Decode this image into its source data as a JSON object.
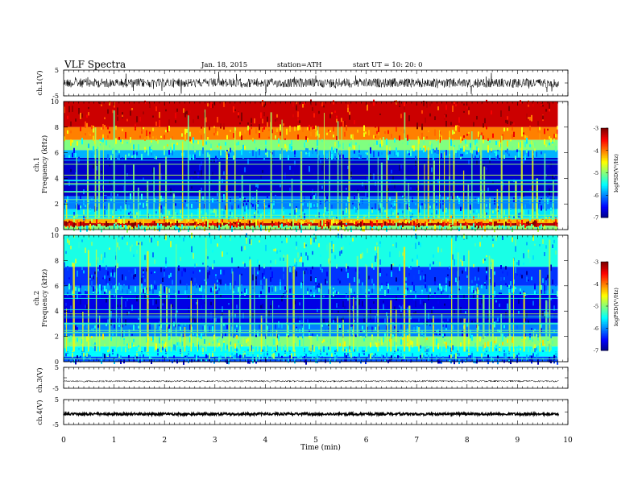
{
  "header": {
    "title": "VLF  Spectra",
    "date": "Jan. 18, 2015",
    "station": "station=ATH",
    "start": "start  UT =    10: 20: 0"
  },
  "chart_data": [
    {
      "type": "line",
      "panel": "ch1-waveform",
      "ylabel": "ch.1(V)",
      "ylim": [
        -5,
        5
      ],
      "ytick_labels": [
        "5",
        "-5"
      ],
      "description_values": {
        "baseline": 0,
        "typical_amplitude": 0.6,
        "spike_amplitude": 2.3
      },
      "xlim": [
        0,
        10
      ]
    },
    {
      "type": "heatmap",
      "panel": "ch1-spectrogram",
      "ylabel": "ch.1\nFrequency (kHz)",
      "ylabel_lines": [
        "ch.1",
        "Frequency  (kHz)"
      ],
      "ylim": [
        0,
        10
      ],
      "ytick_labels": [
        "0",
        "2",
        "4",
        "6",
        "8",
        "10"
      ],
      "xlim": [
        0,
        9.8
      ],
      "colorbar": {
        "label": "logPSD(V²/Hz)",
        "range": [
          -7,
          -3
        ],
        "tick_labels": [
          "-3",
          "-4",
          "-5",
          "-6",
          "-7"
        ]
      },
      "bands": [
        {
          "f_low": 8.0,
          "f_high": 10.0,
          "logPSD": -3.3
        },
        {
          "f_low": 7.0,
          "f_high": 8.0,
          "logPSD": -4.0
        },
        {
          "f_low": 6.2,
          "f_high": 7.0,
          "logPSD": -5.0
        },
        {
          "f_low": 5.6,
          "f_high": 6.2,
          "logPSD": -5.8
        },
        {
          "f_low": 2.6,
          "f_high": 5.6,
          "logPSD": -6.7
        },
        {
          "f_low": 1.6,
          "f_high": 2.6,
          "logPSD": -6.0
        },
        {
          "f_low": 0.9,
          "f_high": 1.6,
          "logPSD": -5.6
        },
        {
          "f_low": 0.5,
          "f_high": 0.9,
          "logPSD": -4.2
        },
        {
          "f_low": 0.3,
          "f_high": 0.5,
          "logPSD": -3.2
        },
        {
          "f_low": 0.0,
          "f_high": 0.3,
          "logPSD": -5.0
        }
      ]
    },
    {
      "type": "heatmap",
      "panel": "ch2-spectrogram",
      "ylabel_lines": [
        "ch.2",
        "Frequency  (kHz)"
      ],
      "ylim": [
        0,
        10
      ],
      "ytick_labels": [
        "0",
        "2",
        "4",
        "6",
        "8",
        "10"
      ],
      "xlim": [
        0,
        9.8
      ],
      "colorbar": {
        "label": "logPSD(V²/Hz)",
        "range": [
          -7,
          -3
        ],
        "tick_labels": [
          "-3",
          "-4",
          "-5",
          "-6",
          "-7"
        ]
      },
      "bands": [
        {
          "f_low": 7.5,
          "f_high": 10.0,
          "logPSD": -5.4
        },
        {
          "f_low": 6.0,
          "f_high": 7.5,
          "logPSD": -6.3
        },
        {
          "f_low": 5.3,
          "f_high": 6.0,
          "logPSD": -5.9
        },
        {
          "f_low": 3.0,
          "f_high": 5.3,
          "logPSD": -6.6
        },
        {
          "f_low": 2.0,
          "f_high": 3.0,
          "logPSD": -6.0
        },
        {
          "f_low": 1.2,
          "f_high": 2.0,
          "logPSD": -5.0
        },
        {
          "f_low": 0.4,
          "f_high": 1.2,
          "logPSD": -5.5
        },
        {
          "f_low": 0.0,
          "f_high": 0.4,
          "logPSD": -6.2
        }
      ]
    },
    {
      "type": "line",
      "panel": "ch3-waveform",
      "ylabel": "ch.3(V)",
      "ylim": [
        -5,
        5
      ],
      "ytick_labels": [
        "5",
        "-5"
      ],
      "description_values": {
        "baseline": -1.6,
        "typical_amplitude": 0.1
      },
      "xlim": [
        0,
        10
      ]
    },
    {
      "type": "line",
      "panel": "ch4-waveform",
      "ylabel": "ch.4(V)",
      "ylim": [
        -5,
        5
      ],
      "ytick_labels": [
        "5",
        "-5"
      ],
      "description_values": {
        "baseline": -0.8,
        "typical_amplitude": 0.3
      },
      "xlim": [
        0,
        10
      ]
    }
  ],
  "xaxis": {
    "xlabel": "Time  (min)",
    "xlim": [
      0,
      10
    ],
    "tick_values": [
      0,
      1,
      2,
      3,
      4,
      5,
      6,
      7,
      8,
      9,
      10
    ],
    "tick_labels": [
      "0",
      "1",
      "2",
      "3",
      "4",
      "5",
      "6",
      "7",
      "8",
      "9",
      "10"
    ]
  }
}
